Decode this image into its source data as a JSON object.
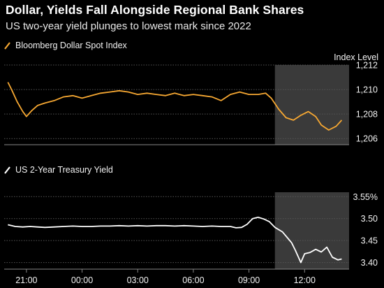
{
  "title": "Dollar, Yields Fall Alongside Regional Bank Shares",
  "subtitle": "US two-year yield plunges to lowest mark since 2022",
  "colors": {
    "background": "#000000",
    "dollar_line": "#f7a832",
    "yield_line": "#ffffff",
    "shade": "#3a3a3a",
    "grid": "#555555",
    "text": "#f2f2f2"
  },
  "chart_data": [
    {
      "type": "line",
      "legend": "Bloomberg Dollar Spot Index",
      "ylabel": "Index Level",
      "yticks": [
        "1,212",
        "1,210",
        "1,208",
        "1,206"
      ],
      "ytick_values": [
        1212,
        1210,
        1208,
        1206
      ],
      "ylim": [
        1205.5,
        1212
      ],
      "x": [
        -4.0,
        -3.8,
        -3.5,
        -3.2,
        -3.0,
        -2.7,
        -2.4,
        -2.0,
        -1.5,
        -1.0,
        -0.5,
        0.0,
        0.5,
        1.0,
        1.5,
        2.0,
        2.5,
        3.0,
        3.5,
        4.0,
        4.5,
        5.0,
        5.5,
        6.0,
        6.5,
        7.0,
        7.5,
        8.0,
        8.5,
        9.0,
        9.5,
        9.9,
        10.2,
        10.6,
        11.0,
        11.4,
        11.8,
        12.2,
        12.6,
        12.9,
        13.3,
        13.7,
        14.0
      ],
      "y": [
        1210.6,
        1210.0,
        1209.0,
        1208.2,
        1207.8,
        1208.3,
        1208.7,
        1208.9,
        1209.1,
        1209.4,
        1209.5,
        1209.3,
        1209.5,
        1209.7,
        1209.8,
        1209.9,
        1209.8,
        1209.6,
        1209.7,
        1209.6,
        1209.5,
        1209.7,
        1209.5,
        1209.6,
        1209.5,
        1209.4,
        1209.1,
        1209.6,
        1209.8,
        1209.6,
        1209.6,
        1209.7,
        1209.3,
        1208.4,
        1207.7,
        1207.5,
        1207.9,
        1208.2,
        1207.8,
        1207.1,
        1206.7,
        1207.0,
        1207.5
      ]
    },
    {
      "type": "line",
      "legend": "US 2-Year Treasury Yield",
      "yticks": [
        "3.55%",
        "3.50",
        "3.45",
        "3.40"
      ],
      "ytick_values": [
        3.55,
        3.5,
        3.45,
        3.4
      ],
      "ylim": [
        3.385,
        3.56
      ],
      "x": [
        -4.0,
        -3.6,
        -3.2,
        -2.8,
        -2.4,
        -2.0,
        -1.5,
        -1.0,
        -0.5,
        0.0,
        0.5,
        1.0,
        1.5,
        2.0,
        2.5,
        3.0,
        3.5,
        4.0,
        4.5,
        5.0,
        5.5,
        6.0,
        6.5,
        7.0,
        7.5,
        8.0,
        8.3,
        8.6,
        8.9,
        9.2,
        9.5,
        9.8,
        10.1,
        10.4,
        10.8,
        11.1,
        11.3,
        11.5,
        11.8,
        12.0,
        12.3,
        12.6,
        12.9,
        13.2,
        13.5,
        13.8,
        14.0
      ],
      "y": [
        3.486,
        3.482,
        3.481,
        3.482,
        3.481,
        3.48,
        3.481,
        3.482,
        3.483,
        3.482,
        3.482,
        3.483,
        3.483,
        3.484,
        3.483,
        3.484,
        3.483,
        3.484,
        3.484,
        3.483,
        3.484,
        3.483,
        3.482,
        3.483,
        3.482,
        3.482,
        3.479,
        3.48,
        3.487,
        3.5,
        3.503,
        3.499,
        3.493,
        3.48,
        3.47,
        3.455,
        3.445,
        3.428,
        3.4,
        3.42,
        3.423,
        3.43,
        3.424,
        3.435,
        3.412,
        3.406,
        3.408
      ]
    }
  ],
  "x_axis": {
    "ticks": [
      "21:00",
      "00:00",
      "03:00",
      "06:00",
      "09:00",
      "12:00"
    ],
    "tick_hours": [
      -3,
      0,
      3,
      6,
      9,
      12
    ],
    "range": [
      -4.2,
      14.4
    ],
    "shade_range": [
      10.4,
      14.4
    ]
  }
}
